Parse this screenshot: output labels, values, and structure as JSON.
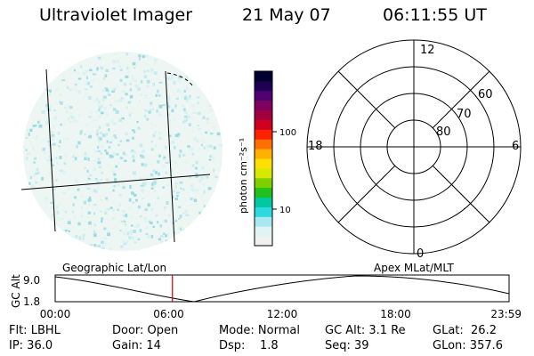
{
  "header": {
    "title": "Ultraviolet Imager",
    "date": "21 May 07",
    "time": "06:11:55 UT"
  },
  "colorbar": {
    "label": "photon cm⁻²s⁻¹",
    "ticks": [
      "100",
      "10"
    ],
    "colors": [
      "#f0f0f0",
      "#e0f4f6",
      "#a8e8f0",
      "#30d8e0",
      "#00c8a0",
      "#20c020",
      "#80d000",
      "#d8e800",
      "#ffe000",
      "#ffb000",
      "#ff7000",
      "#ff2000",
      "#d00020",
      "#a00040",
      "#800060",
      "#500070",
      "#200050",
      "#000030"
    ]
  },
  "polar": {
    "mlt_labels": {
      "top": "12",
      "bottom": "0",
      "left": "18",
      "right": "6"
    },
    "lat_labels": [
      "60",
      "70",
      "80"
    ]
  },
  "timeline": {
    "left_title": "Geographic Lat/Lon",
    "right_title": "Apex MLat/MLT",
    "axis_label": "GC Alt",
    "y_top": "9.0",
    "y_bottom": "1.8",
    "x_ticks": [
      "00:00",
      "06:00",
      "12:00",
      "18:00",
      "23:59"
    ],
    "marker_hour": 6.2
  },
  "footer": {
    "flt": "Flt: LBHL",
    "ip": "IP: 36.0",
    "door": "Door: Open",
    "gain": "Gain: 14",
    "mode": "Mode: Normal",
    "dsp": "Dsp:    1.8",
    "gcalt": "GC Alt: 3.1 Re",
    "seq": "Seq: 39",
    "glat": "GLat:  26.2",
    "glon": "GLon: 357.6"
  }
}
